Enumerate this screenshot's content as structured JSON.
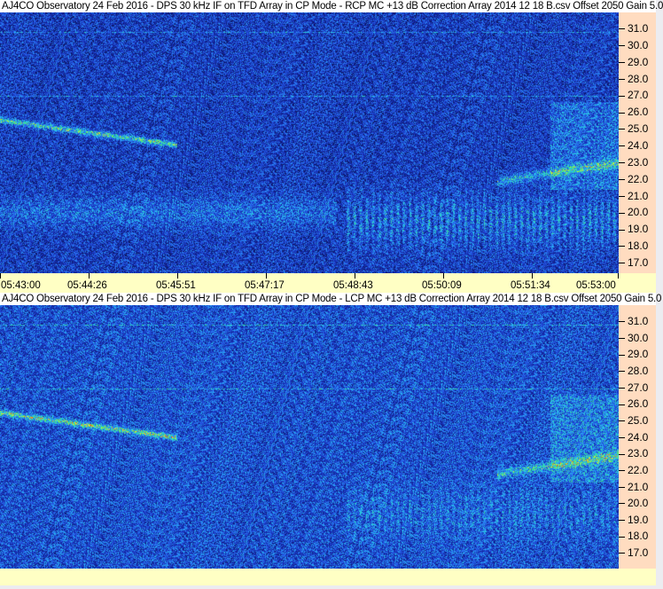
{
  "chart_data": [
    {
      "type": "heatmap",
      "title": "AJ4CO Observatory 24 Feb 2016 - DPS 30 kHz IF on TFD Array in CP Mode - RCP  MC +13 dB  Correction Array 2014 12 18 B.csv  Offset 2050  Gain 5.0",
      "x_ticks": [
        "05:43:00",
        "05:44:26",
        "05:45:51",
        "05:47:17",
        "05:48:43",
        "05:50:09",
        "05:51:34",
        "05:53:00"
      ],
      "y_ticks": [
        "31.0",
        "30.0",
        "29.0",
        "28.0",
        "27.0",
        "26.0",
        "25.0",
        "24.0",
        "23.0",
        "22.0",
        "21.0",
        "20.0",
        "19.0",
        "18.0",
        "17.0"
      ],
      "xlim": [
        "05:43:00",
        "05:53:00"
      ],
      "ylim": [
        16.4,
        32.0
      ],
      "colormap": "black-blue-cyan-green-yellow-red"
    },
    {
      "type": "heatmap",
      "title": "AJ4CO Observatory 24 Feb 2016 - DPS 30 kHz IF on TFD Array in CP Mode - LCP  MC +13 dB  Correction Array 2014 12 18 B.csv  Offset 2050  Gain 5.0",
      "y_ticks": [
        "31.0",
        "30.0",
        "29.0",
        "28.0",
        "27.0",
        "26.0",
        "25.0",
        "24.0",
        "23.0",
        "22.0",
        "21.0",
        "20.0",
        "19.0",
        "18.0",
        "17.0"
      ],
      "xlim": [
        "05:43:00",
        "05:53:00"
      ],
      "ylim": [
        16.4,
        32.0
      ],
      "colormap": "black-blue-cyan-green-yellow-red"
    }
  ],
  "colors": {
    "y_axis_bg": "#ffdcc0",
    "x_axis_bg": "#ffffc4"
  }
}
